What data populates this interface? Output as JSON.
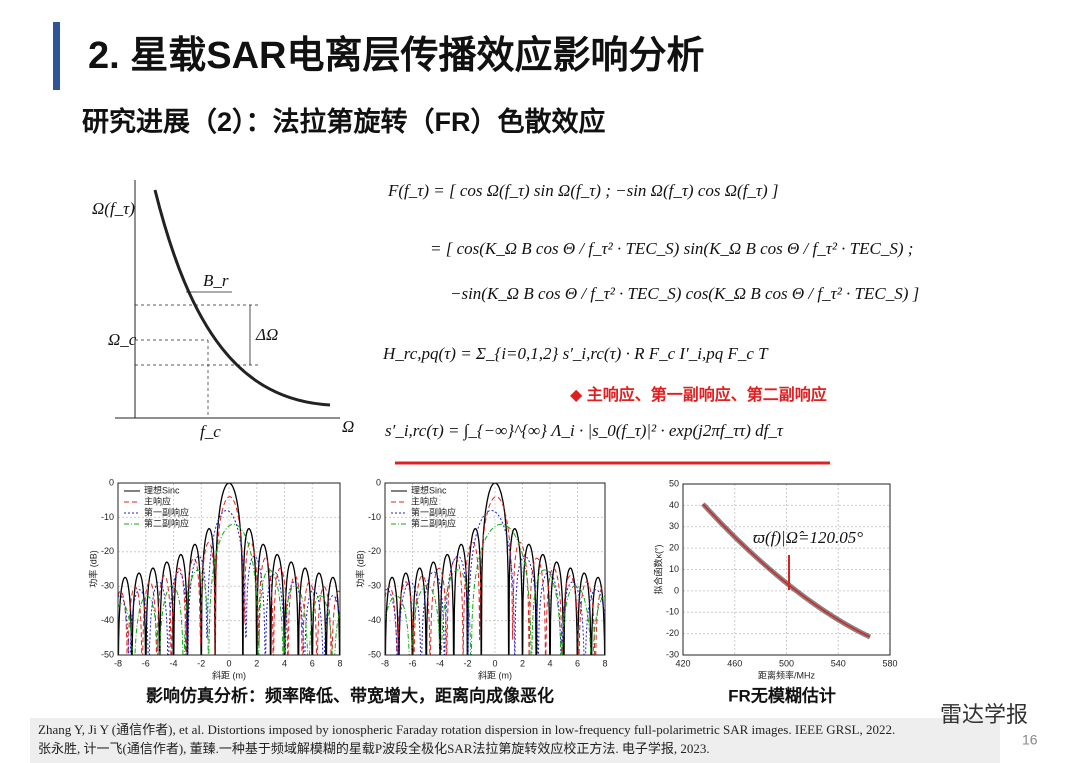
{
  "header": {
    "title": "2. 星载SAR电离层传播效应影响分析",
    "subtitle": "研究进展（2）：法拉第旋转（FR）色散效应"
  },
  "diagram": {
    "y_label": "Ω(f_τ)",
    "omega_c": "Ω_c",
    "f_c": "f_c",
    "x_label": "Ω",
    "b_r": "B_r",
    "delta_omega": "ΔΩ"
  },
  "equations": [
    "F(f_τ) = [ cos Ω(f_τ)   sin Ω(f_τ) ;  −sin Ω(f_τ)   cos Ω(f_τ) ]",
    "= [ cos(K_Ω B cos Θ / f_τ² · TEC_S)   sin(K_Ω B cos Θ / f_τ² · TEC_S) ;",
    "−sin(K_Ω B cos Θ / f_τ² · TEC_S)   cos(K_Ω B cos Θ / f_τ² · TEC_S) ]",
    "H_rc,pq(τ) = Σ_{i=0,1,2} s′_i,rc(τ) · R F_c I′_i,pq F_c T",
    "s′_i,rc(τ) = ∫_{−∞}^{∞} Λ_i · |s_0(f_τ)|² · exp(j2πf_ττ) df_τ"
  ],
  "note": "◆  主响应、第一副响应、第二副响应",
  "plots": [
    {
      "xlabel": "斜距 (m)",
      "ylabel": "功率 (dB)",
      "xlim": [
        -8,
        8
      ],
      "ylim": [
        -50,
        0
      ],
      "xticks": [
        -8,
        -6,
        -4,
        -2,
        0,
        2,
        4,
        6,
        8
      ],
      "yticks": [
        0,
        -10,
        -20,
        -30,
        -40,
        -50
      ],
      "legend": [
        "理想Sinc",
        "主响应",
        "第一副响应",
        "第二副响应"
      ]
    },
    {
      "xlabel": "斜距 (m)",
      "ylabel": "功率 (dB)",
      "xlim": [
        -8,
        8
      ],
      "ylim": [
        -50,
        0
      ],
      "xticks": [
        -8,
        -6,
        -4,
        -2,
        0,
        2,
        4,
        6,
        8
      ],
      "yticks": [
        0,
        -10,
        -20,
        -30,
        -40,
        -50
      ],
      "legend": [
        "理想Sinc",
        "主响应",
        "第一副响应",
        "第二副响应"
      ]
    },
    {
      "xlabel": "距离频率/MHz",
      "ylabel": "拟合函数κ(°)",
      "xlim": [
        420,
        580
      ],
      "ylim": [
        -30,
        50
      ],
      "xticks": [
        420,
        460,
        500,
        540,
        580
      ],
      "yticks": [
        50,
        40,
        30,
        20,
        10,
        0,
        -10,
        -20,
        -30
      ],
      "legend": [],
      "annotation": "ϖ(f)|Ω̂=120.05°"
    }
  ],
  "captions": [
    "影响仿真分析：频率降低、带宽增大，距离向成像恶化",
    "FR无模糊估计"
  ],
  "references": [
    "Zhang Y, Ji Y (通信作者),  et al. Distortions imposed by ionospheric Faraday rotation dispersion in low-frequency full-polarimetric SAR images. IEEE GRSL, 2022.",
    "张永胜, 计一飞(通信作者), 董臻.一种基于频域解模糊的星载P波段全极化SAR法拉第旋转效应校正方法. 电子学报, 2023."
  ],
  "logo": "雷达学报",
  "page_number": "16"
}
